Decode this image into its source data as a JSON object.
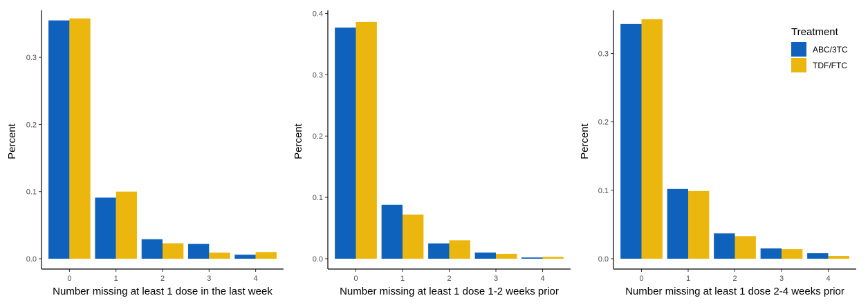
{
  "colors": {
    "ABC/3TC": "#0F62BC",
    "TDF/FTC": "#EBB60D",
    "axis": "#000000",
    "tick_text": "#4d4d4d",
    "label_text": "#000000"
  },
  "legend": {
    "title": "Treatment",
    "placement": "top-right",
    "items": [
      "ABC/3TC",
      "TDF/FTC"
    ]
  },
  "chart_data": [
    {
      "type": "bar",
      "xlabel": "Number missing at least 1 dose in the last week",
      "ylabel": "Percent",
      "categories": [
        "0",
        "1",
        "2",
        "3",
        "4"
      ],
      "ylim": [
        0,
        0.37
      ],
      "yticks": [
        0.0,
        0.1,
        0.2,
        0.3
      ],
      "ytick_labels": [
        "0.0",
        "0.1",
        "0.2",
        "0.3"
      ],
      "grid": false,
      "series": [
        {
          "name": "ABC/3TC",
          "values": [
            0.355,
            0.091,
            0.029,
            0.022,
            0.006
          ]
        },
        {
          "name": "TDF/FTC",
          "values": [
            0.358,
            0.1,
            0.023,
            0.009,
            0.01
          ]
        }
      ]
    },
    {
      "type": "bar",
      "xlabel": "Number missing at least 1 dose 1-2 weeks prior",
      "ylabel": "Percent",
      "categories": [
        "0",
        "1",
        "2",
        "3",
        "4"
      ],
      "ylim": [
        0,
        0.405
      ],
      "yticks": [
        0.0,
        0.1,
        0.2,
        0.3,
        0.4
      ],
      "ytick_labels": [
        "0.0",
        "0.1",
        "0.2",
        "0.3",
        "0.4"
      ],
      "grid": false,
      "series": [
        {
          "name": "ABC/3TC",
          "values": [
            0.377,
            0.088,
            0.025,
            0.01,
            0.002
          ]
        },
        {
          "name": "TDF/FTC",
          "values": [
            0.386,
            0.072,
            0.03,
            0.008,
            0.003
          ]
        }
      ]
    },
    {
      "type": "bar",
      "xlabel": "Number missing at least 1 dose 2-4 weeks prior",
      "ylabel": "Percent",
      "categories": [
        "0",
        "1",
        "2",
        "3",
        "4"
      ],
      "ylim": [
        0,
        0.363
      ],
      "yticks": [
        0.0,
        0.1,
        0.2,
        0.3
      ],
      "ytick_labels": [
        "0.0",
        "0.1",
        "0.2",
        "0.3"
      ],
      "grid": false,
      "series": [
        {
          "name": "ABC/3TC",
          "values": [
            0.343,
            0.102,
            0.037,
            0.015,
            0.008
          ]
        },
        {
          "name": "TDF/FTC",
          "values": [
            0.35,
            0.099,
            0.033,
            0.014,
            0.004
          ]
        }
      ]
    }
  ]
}
